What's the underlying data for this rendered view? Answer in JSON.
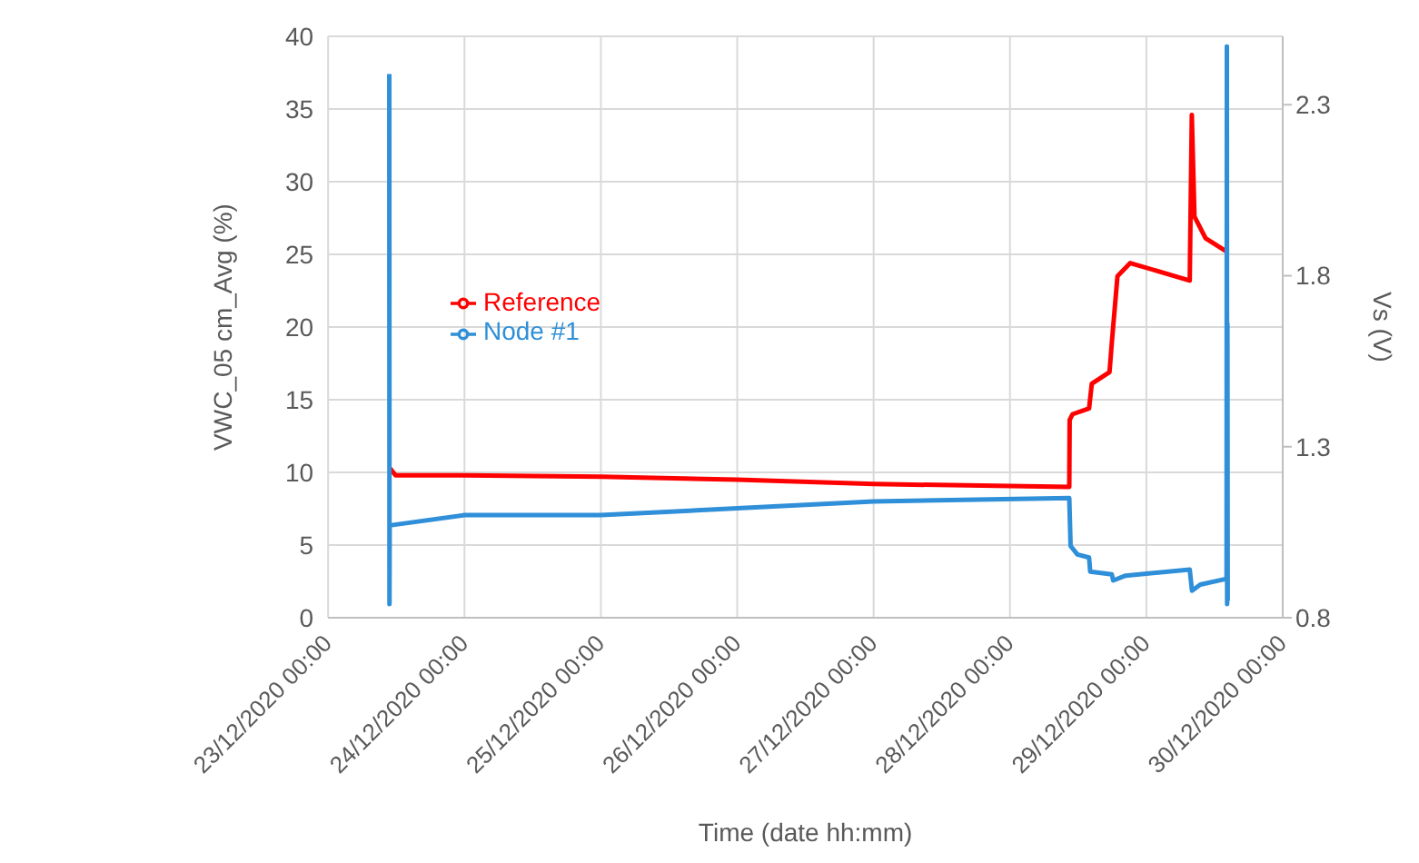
{
  "chart_data": {
    "type": "line",
    "xlabel": "Time (date hh:mm)",
    "ylabel": "VWC_05 cm_Avg (%)",
    "y2label": "Vs (V)",
    "xlim": [
      "2020-12-23T00:00",
      "2020-12-30T00:00"
    ],
    "xticks": [
      {
        "value": "2020-12-23T00:00",
        "label": "23/12/2020 00:00"
      },
      {
        "value": "2020-12-24T00:00",
        "label": "24/12/2020 00:00"
      },
      {
        "value": "2020-12-25T00:00",
        "label": "25/12/2020 00:00"
      },
      {
        "value": "2020-12-26T00:00",
        "label": "26/12/2020 00:00"
      },
      {
        "value": "2020-12-27T00:00",
        "label": "27/12/2020 00:00"
      },
      {
        "value": "2020-12-28T00:00",
        "label": "28/12/2020 00:00"
      },
      {
        "value": "2020-12-29T00:00",
        "label": "29/12/2020 00:00"
      },
      {
        "value": "2020-12-30T00:00",
        "label": "30/12/2020 00:00"
      }
    ],
    "ylim": [
      0,
      40
    ],
    "yticks": [
      0,
      5,
      10,
      15,
      20,
      25,
      30,
      35,
      40
    ],
    "y2lim": [
      0.8,
      2.5
    ],
    "y2ticks": [
      0.8,
      1.3,
      1.8,
      2.3
    ],
    "grid": true,
    "legend": "left",
    "marker": "none",
    "line_style": "solid",
    "series": [
      {
        "name": "Reference",
        "color": "#ff0000",
        "x": [
          "2020-12-23T10:49",
          "2020-12-23T11:52",
          "2020-12-24T00:00",
          "2020-12-25T00:00",
          "2020-12-26T00:00",
          "2020-12-27T00:00",
          "2020-12-28T10:26",
          "2020-12-28T10:30",
          "2020-12-28T11:00",
          "2020-12-28T13:55",
          "2020-12-28T14:24",
          "2020-12-28T17:31",
          "2020-12-28T17:55",
          "2020-12-28T18:55",
          "2020-12-28T21:10",
          "2020-12-29T07:38",
          "2020-12-29T08:00",
          "2020-12-29T08:28",
          "2020-12-29T10:26",
          "2020-12-29T14:07"
        ],
        "values": [
          10.3,
          9.8,
          9.8,
          9.7,
          9.5,
          9.2,
          9.0,
          13.6,
          14.0,
          14.4,
          16.1,
          16.9,
          18.9,
          23.5,
          24.4,
          23.2,
          34.6,
          27.6,
          26.1,
          25.2
        ]
      },
      {
        "name": "Node #1",
        "color": "#2f8fd8",
        "axis": "y2",
        "x": [
          "2020-12-23T10:46",
          "2020-12-23T10:48",
          "2020-12-23T10:50",
          "2020-12-24T00:00",
          "2020-12-25T00:00",
          "2020-12-26T00:00",
          "2020-12-27T00:00",
          "2020-12-28T10:26",
          "2020-12-28T10:40",
          "2020-12-28T11:52",
          "2020-12-28T13:55",
          "2020-12-28T14:07",
          "2020-12-28T17:55",
          "2020-12-28T18:10",
          "2020-12-28T20:20",
          "2020-12-29T07:38",
          "2020-12-29T08:02",
          "2020-12-29T09:30",
          "2020-12-29T14:07",
          "2020-12-29T14:10",
          "2020-12-29T14:13",
          "2020-12-29T14:16",
          "2020-12-29T14:19"
        ],
        "values": [
          2.39,
          0.84,
          1.07,
          1.1,
          1.1,
          1.12,
          1.14,
          1.15,
          1.01,
          0.985,
          0.976,
          0.935,
          0.927,
          0.909,
          0.923,
          0.941,
          0.879,
          0.897,
          0.914,
          2.47,
          0.84,
          1.66,
          0.85
        ]
      }
    ]
  }
}
